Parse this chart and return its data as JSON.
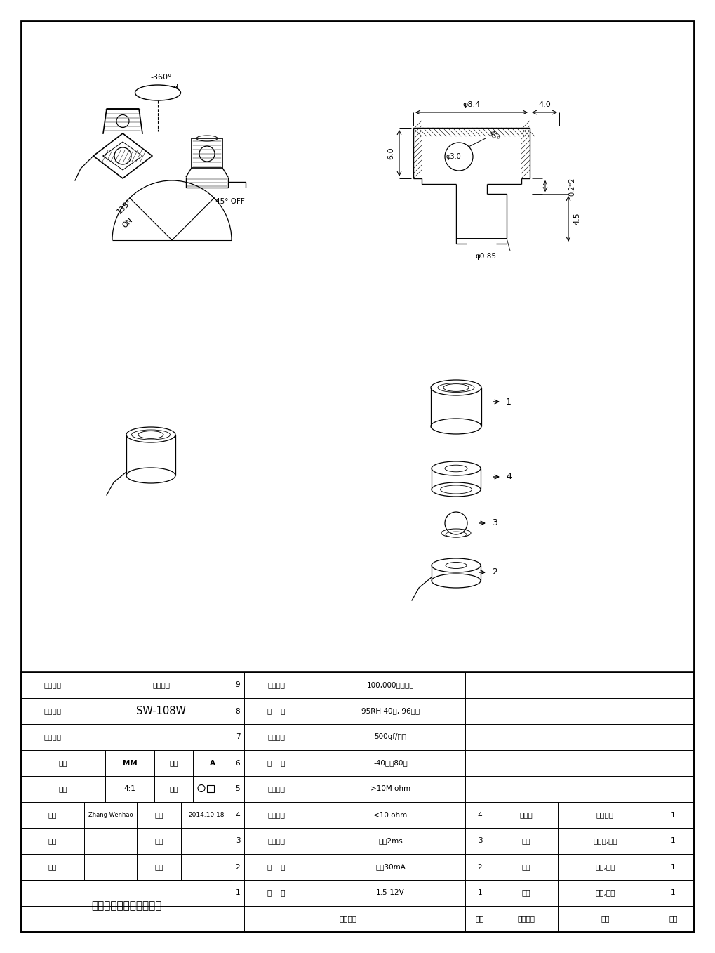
{
  "bg_color": "#ffffff",
  "line_color": "#000000",
  "table": {
    "product_name": "滚珠开关",
    "product_code": "SW-108W",
    "drawing_no": "",
    "unit": "MM",
    "version": "A",
    "scale": "4:1",
    "drawn_by": "Zhang Wenhao",
    "date": "2014.10.18",
    "company": "东菞市闰豪实业有限公司",
    "specs": [
      {
        "no": "9",
        "name": "操作寿命",
        "value": "100,000周期以上"
      },
      {
        "no": "8",
        "name": "湿    度",
        "value": "95RH 40度, 96小时"
      },
      {
        "no": "7",
        "name": "端子拉力",
        "value": "500gf/分钟"
      },
      {
        "no": "6",
        "name": "耐    温",
        "value": "-40度至80度"
      },
      {
        "no": "5",
        "name": "开路电阱",
        "value": ">10M ohm"
      },
      {
        "no": "4",
        "name": "闭路电阱",
        "value": "<10 ohm"
      },
      {
        "no": "3",
        "name": "导通时间",
        "value": "大于2ms"
      },
      {
        "no": "2",
        "name": "电    流",
        "value": "小于30mA"
      },
      {
        "no": "1",
        "name": "电    压",
        "value": "1.5-12V"
      }
    ],
    "parts": [
      {
        "no": "4",
        "name": "绵缘环",
        "material": "耐温尼龙",
        "qty": "1"
      },
      {
        "no": "3",
        "name": "滚珠",
        "material": "不锈锂,镀銀",
        "qty": "1"
      },
      {
        "no": "2",
        "name": "导杯",
        "material": "黄锂,镀銀",
        "qty": "1"
      },
      {
        "no": "1",
        "name": "鑰帽",
        "material": "黄锂,镀銀",
        "qty": "1"
      }
    ]
  }
}
